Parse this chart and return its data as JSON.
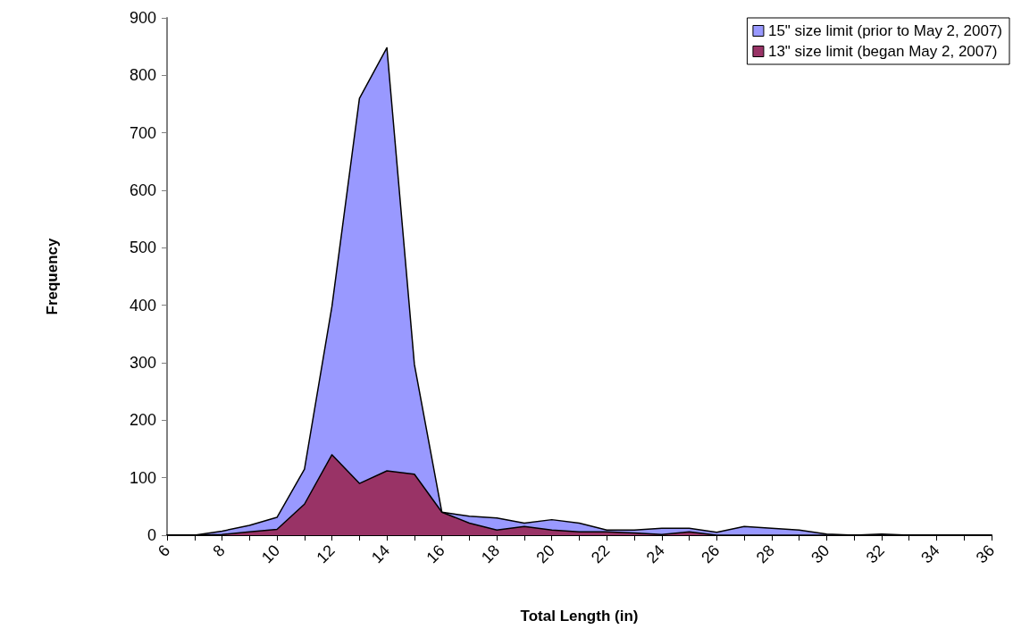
{
  "chart_data": {
    "type": "area",
    "xlabel": "Total Length (in)",
    "ylabel": "Frequency",
    "x": [
      6,
      7,
      8,
      9,
      10,
      11,
      12,
      13,
      14,
      15,
      16,
      17,
      18,
      19,
      20,
      21,
      22,
      23,
      24,
      25,
      26,
      27,
      28,
      29,
      30,
      31,
      32,
      33,
      34,
      35,
      36
    ],
    "series": [
      {
        "name": "15\" size limit (prior to May 2, 2007)",
        "color": "#9999ff",
        "values": [
          0,
          0,
          7,
          17,
          31,
          115,
          398,
          760,
          848,
          297,
          40,
          33,
          30,
          21,
          27,
          21,
          9,
          9,
          12,
          12,
          5,
          15,
          12,
          9,
          2,
          0,
          2,
          0,
          0,
          0,
          0
        ]
      },
      {
        "name": "13\" size limit (began May 2, 2007)",
        "color": "#993366",
        "values": [
          0,
          0,
          1,
          6,
          10,
          54,
          140,
          90,
          112,
          106,
          40,
          21,
          9,
          15,
          9,
          6,
          6,
          4,
          1,
          6,
          0,
          0,
          0,
          0,
          0,
          0,
          0,
          0,
          0,
          0,
          0
        ]
      }
    ],
    "xlim": [
      6,
      36
    ],
    "xticks": [
      6,
      {
        "value": 7,
        "label": null
      },
      8,
      {
        "value": 9,
        "label": null
      },
      10,
      {
        "value": 11,
        "label": null
      },
      12,
      {
        "value": 13,
        "label": null
      },
      14,
      {
        "value": 15,
        "label": null
      },
      16,
      {
        "value": 17,
        "label": null
      },
      18,
      {
        "value": 19,
        "label": null
      },
      20,
      {
        "value": 21,
        "label": null
      },
      22,
      {
        "value": 23,
        "label": null
      },
      24,
      {
        "value": 25,
        "label": null
      },
      26,
      {
        "value": 27,
        "label": null
      },
      28,
      {
        "value": 29,
        "label": null
      },
      30,
      {
        "value": 31,
        "label": null
      },
      32,
      {
        "value": 33,
        "label": null
      },
      34,
      {
        "value": 35,
        "label": null
      },
      36
    ],
    "ylim": [
      0,
      900
    ],
    "yticks": [
      0,
      100,
      200,
      300,
      400,
      500,
      600,
      700,
      800,
      900
    ],
    "grid": false,
    "legend": "top right",
    "marker": "none",
    "line_style": "solid"
  }
}
